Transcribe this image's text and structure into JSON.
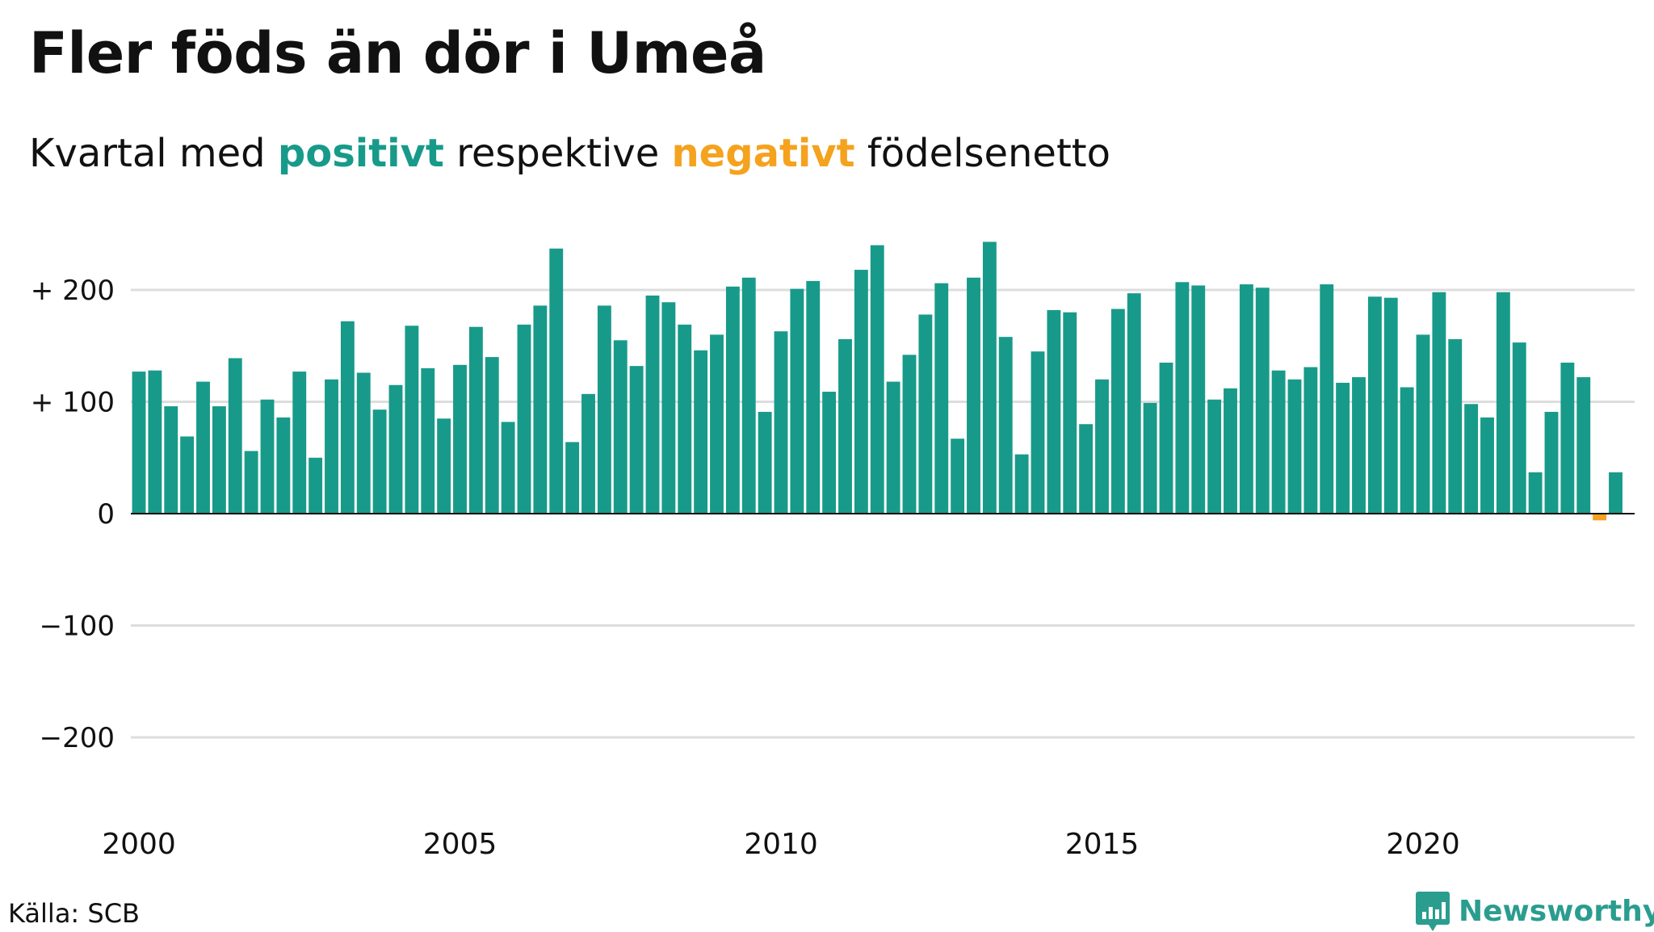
{
  "header": {
    "title": "Fler föds än dör i Umeå",
    "subtitle_pre": "Kvartal med ",
    "subtitle_pos": "positivt",
    "subtitle_mid": " respektive ",
    "subtitle_neg": "negativt",
    "subtitle_post": " födelsenetto"
  },
  "footer": {
    "source": "Källa: SCB",
    "brand": "Newsworthy"
  },
  "colors": {
    "positive": "#189a8a",
    "negative": "#f5a21f",
    "grid": "#dddddd",
    "zero_line": "#111111"
  },
  "chart_data": {
    "type": "bar",
    "x_start": 2000,
    "x_step": 0.25,
    "xticks": [
      2000,
      2005,
      2010,
      2015,
      2020
    ],
    "xtick_labels": [
      "2000",
      "2005",
      "2010",
      "2015",
      "2020"
    ],
    "yticks": [
      200,
      100,
      0,
      -100,
      -200
    ],
    "ytick_labels": [
      "+ 200",
      "+ 100",
      "0",
      "−100",
      "−200"
    ],
    "ylim": [
      -200,
      240
    ],
    "grid": true,
    "values": [
      127,
      128,
      96,
      69,
      118,
      96,
      139,
      56,
      102,
      86,
      127,
      50,
      120,
      172,
      126,
      93,
      115,
      168,
      130,
      85,
      133,
      167,
      140,
      82,
      169,
      186,
      237,
      64,
      107,
      186,
      155,
      132,
      195,
      189,
      169,
      146,
      160,
      203,
      211,
      91,
      163,
      201,
      208,
      109,
      156,
      218,
      240,
      118,
      142,
      178,
      206,
      67,
      211,
      243,
      158,
      53,
      145,
      182,
      180,
      80,
      120,
      183,
      197,
      99,
      135,
      207,
      204,
      102,
      112,
      205,
      202,
      128,
      120,
      131,
      205,
      117,
      122,
      194,
      193,
      113,
      160,
      198,
      156,
      98,
      86,
      198,
      153,
      37,
      91,
      135,
      122,
      -6,
      37
    ]
  }
}
